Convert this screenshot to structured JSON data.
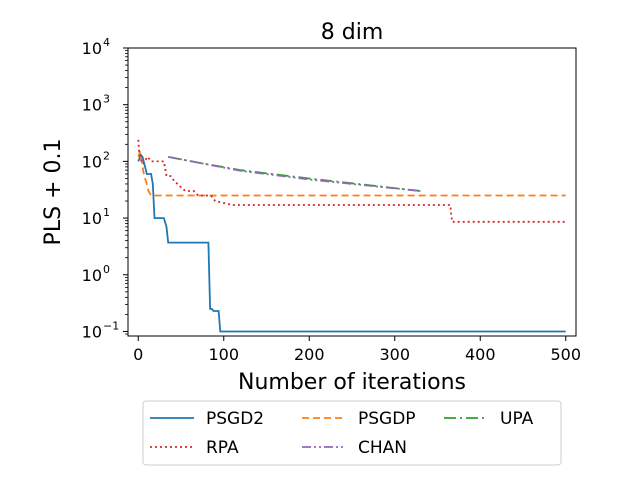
{
  "chart_data": {
    "type": "line",
    "title": "8 dim",
    "xlabel": "Number of iterations",
    "ylabel": "PLS + 0.1",
    "xlim": [
      -12,
      512
    ],
    "ylim_log10": [
      -1.08,
      4
    ],
    "yscale": "log",
    "grid": false,
    "legend_position": "lower-center-outside",
    "x_ticks": [
      {
        "value": 0,
        "label": "0"
      },
      {
        "value": 100,
        "label": "100"
      },
      {
        "value": 200,
        "label": "200"
      },
      {
        "value": 300,
        "label": "300"
      },
      {
        "value": 400,
        "label": "400"
      },
      {
        "value": 500,
        "label": "500"
      }
    ],
    "y_ticks": [
      {
        "value": 0.1,
        "base": "10",
        "exp": "−1"
      },
      {
        "value": 1,
        "base": "10",
        "exp": "0"
      },
      {
        "value": 10,
        "base": "10",
        "exp": "1"
      },
      {
        "value": 100,
        "base": "10",
        "exp": "2"
      },
      {
        "value": 1000,
        "base": "10",
        "exp": "3"
      },
      {
        "value": 10000,
        "base": "10",
        "exp": "4"
      }
    ],
    "series": [
      {
        "name": "PSGD2",
        "color": "#1f77b4",
        "dash": "",
        "x": [
          0,
          3,
          5,
          8,
          10,
          12,
          15,
          17,
          19,
          21,
          23,
          30,
          33,
          35,
          40,
          50,
          80,
          82,
          84,
          86,
          88,
          90,
          94,
          96,
          500
        ],
        "y": [
          100,
          130,
          120,
          80,
          60,
          60,
          60,
          40,
          10,
          10,
          10,
          10,
          7,
          3.7,
          3.7,
          3.7,
          3.7,
          3.7,
          0.25,
          0.25,
          0.23,
          0.23,
          0.23,
          0.1,
          0.1
        ]
      },
      {
        "name": "PSGDP",
        "color": "#ff7f0e",
        "dash": "7,4",
        "x": [
          0,
          2,
          4,
          6,
          8,
          10,
          12,
          15,
          500
        ],
        "y": [
          120,
          150,
          100,
          65,
          50,
          40,
          30,
          25,
          25
        ]
      },
      {
        "name": "UPA",
        "color": "#2ca02c",
        "dash": "12,4,2,4",
        "x": [
          35,
          70,
          120,
          200,
          330
        ],
        "y": [
          120,
          95,
          70,
          50,
          30
        ]
      },
      {
        "name": "RPA",
        "color": "#d62728",
        "dash": "2,3",
        "x": [
          0,
          1,
          3,
          5,
          8,
          10,
          13,
          15,
          30,
          33,
          38,
          42,
          55,
          58,
          65,
          70,
          85,
          90,
          110,
          130,
          170,
          230,
          300,
          360,
          365,
          367,
          500
        ],
        "y": [
          240,
          150,
          110,
          90,
          100,
          120,
          110,
          100,
          100,
          55,
          55,
          45,
          30,
          30,
          30,
          25,
          25,
          20,
          17,
          17,
          17,
          17,
          17,
          17,
          17,
          8.6,
          8.6
        ]
      },
      {
        "name": "CHAN",
        "color": "#9467bd",
        "dash": "9,3,2,3,2,3",
        "x": [
          35,
          70,
          120,
          200,
          330
        ],
        "y": [
          120,
          95,
          68,
          48,
          30
        ]
      }
    ]
  }
}
